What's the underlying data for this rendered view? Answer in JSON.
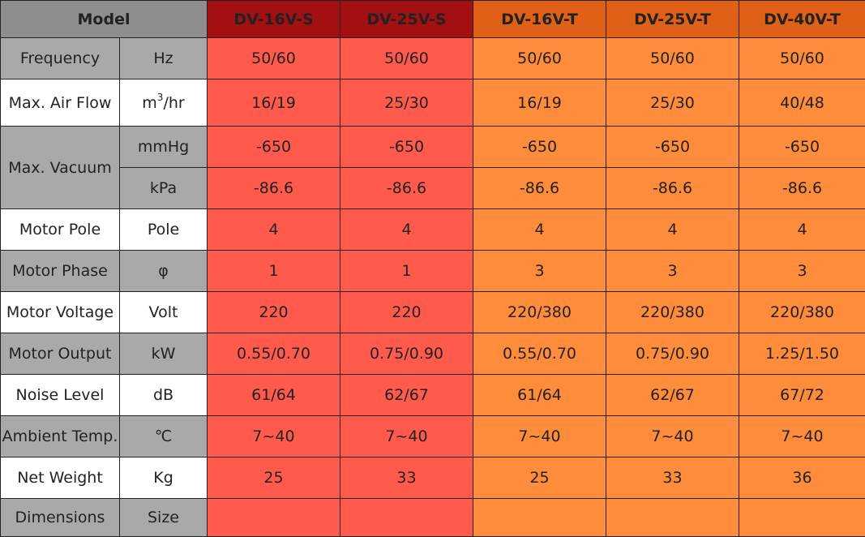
{
  "header": {
    "model_label": "Model",
    "models": [
      "DV-16V-S",
      "DV-25V-S",
      "DV-16V-T",
      "DV-25V-T",
      "DV-40V-T"
    ]
  },
  "rows": {
    "frequency": {
      "label": "Frequency",
      "unit": "Hz",
      "values": [
        "50/60",
        "50/60",
        "50/60",
        "50/60",
        "50/60"
      ]
    },
    "air_flow": {
      "label": "Max. Air Flow",
      "unit_base": "m",
      "unit_sup": "3",
      "unit_rest": "/hr",
      "values": [
        "16/19",
        "25/30",
        "16/19",
        "25/30",
        "40/48"
      ]
    },
    "vacuum": {
      "label": "Max. Vacuum",
      "unit_mmhg": "mmHg",
      "values_mmhg": [
        "-650",
        "-650",
        "-650",
        "-650",
        "-650"
      ],
      "unit_kpa": "kPa",
      "values_kpa": [
        "-86.6",
        "-86.6",
        "-86.6",
        "-86.6",
        "-86.6"
      ]
    },
    "motor_pole": {
      "label": "Motor Pole",
      "unit": "Pole",
      "values": [
        "4",
        "4",
        "4",
        "4",
        "4"
      ]
    },
    "motor_phase": {
      "label": "Motor Phase",
      "unit": "φ",
      "values": [
        "1",
        "1",
        "3",
        "3",
        "3"
      ]
    },
    "motor_voltage": {
      "label": "Motor Voltage",
      "unit": "Volt",
      "values": [
        "220",
        "220",
        "220/380",
        "220/380",
        "220/380"
      ]
    },
    "motor_output": {
      "label": "Motor Output",
      "unit": "kW",
      "values": [
        "0.55/0.70",
        "0.75/0.90",
        "0.55/0.70",
        "0.75/0.90",
        "1.25/1.50"
      ]
    },
    "noise_level": {
      "label": "Noise Level",
      "unit": "dB",
      "values": [
        "61/64",
        "62/67",
        "61/64",
        "62/67",
        "67/72"
      ]
    },
    "ambient_temp": {
      "label": "Ambient Temp.",
      "unit": "℃",
      "values": [
        "7~40",
        "7~40",
        "7~40",
        "7~40",
        "7~40"
      ]
    },
    "net_weight": {
      "label": "Net Weight",
      "unit": "Kg",
      "values": [
        "25",
        "33",
        "25",
        "33",
        "36"
      ]
    },
    "dimensions": {
      "label": "Dimensions",
      "unit": "Size",
      "values": [
        "",
        "",
        "",
        "",
        ""
      ]
    }
  },
  "colors": {
    "header_gray": "#8e8e8e",
    "header_s": "#a40f12",
    "header_t": "#e06116",
    "cell_s": "#ff5a4c",
    "cell_t": "#ff8c3a",
    "label_gray": "#a9a9a9"
  }
}
